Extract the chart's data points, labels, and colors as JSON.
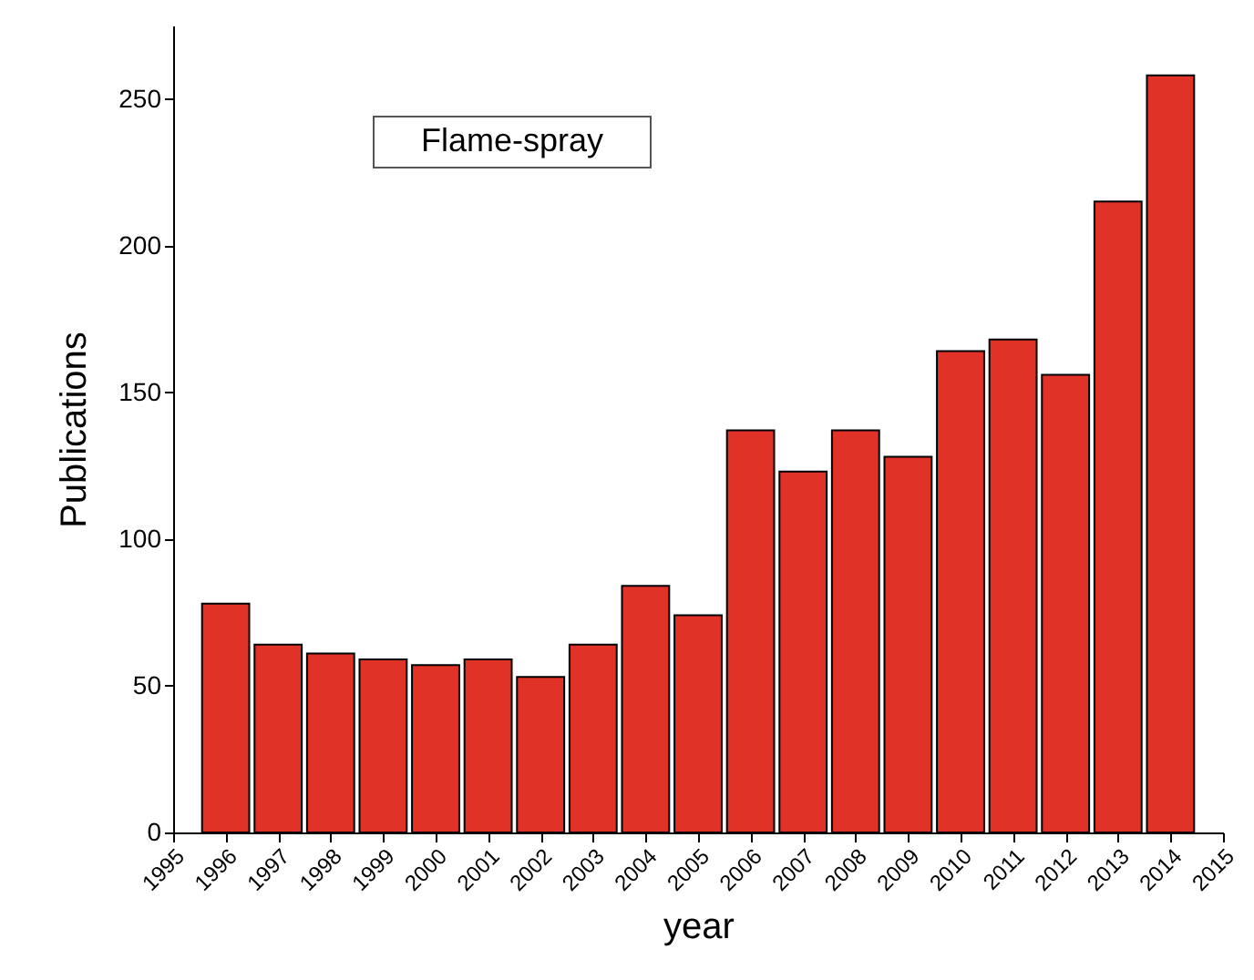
{
  "chart_data": {
    "type": "bar",
    "xlabel": "year",
    "ylabel": "Publications",
    "annotations": [
      "Flame-spray"
    ],
    "x": [
      1996,
      1997,
      1998,
      1999,
      2000,
      2001,
      2002,
      2003,
      2004,
      2005,
      2006,
      2007,
      2008,
      2009,
      2010,
      2011,
      2012,
      2013,
      2014
    ],
    "values": [
      78,
      64,
      61,
      59,
      57,
      59,
      53,
      64,
      84,
      74,
      137,
      123,
      137,
      128,
      164,
      168,
      156,
      215,
      258
    ],
    "color": "#e03226",
    "xlim": [
      1995,
      2015
    ],
    "xticks": [
      1995,
      1996,
      1997,
      1998,
      1999,
      2000,
      2001,
      2002,
      2003,
      2004,
      2005,
      2006,
      2007,
      2008,
      2009,
      2010,
      2011,
      2012,
      2013,
      2014,
      2015
    ],
    "ylim": [
      0,
      275
    ],
    "yticks": [
      0,
      50,
      100,
      150,
      200,
      250
    ],
    "grid": false
  }
}
